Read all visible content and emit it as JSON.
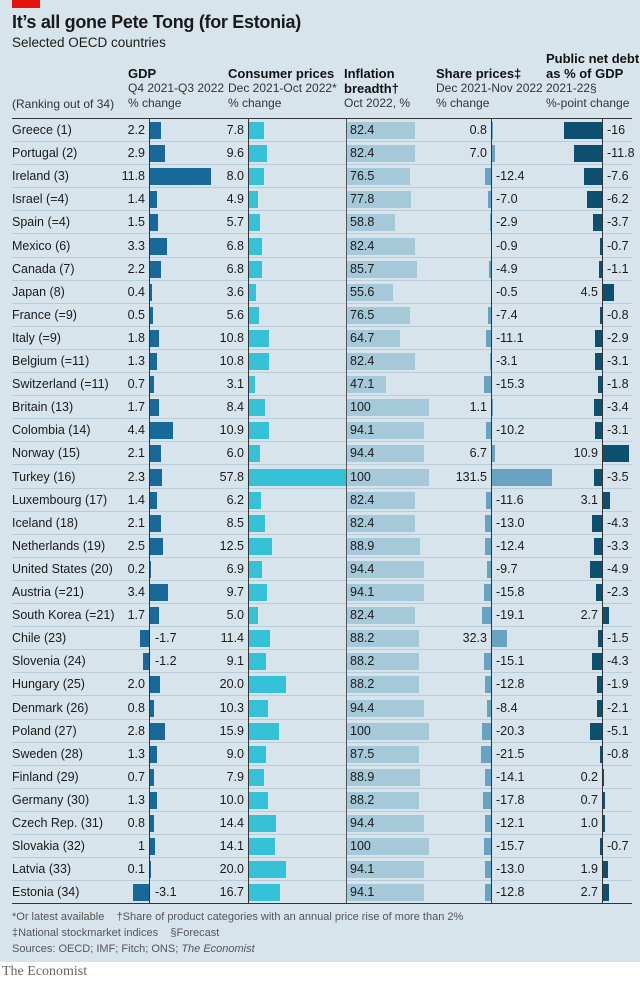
{
  "title": "It’s all gone Pete Tong (for Estonia)",
  "subtitle": "Selected OECD countries",
  "ranking_label": "(Ranking out of 34)",
  "columns": [
    {
      "title": "GDP",
      "sub1": "Q4 2021-Q3 2022",
      "sub2": "% change"
    },
    {
      "title": "Consumer prices",
      "sub1": "Dec 2021-Oct 2022*",
      "sub2": "% change"
    },
    {
      "title": "Inflation",
      "title2": "breadth†",
      "sub2": "Oct 2022, %"
    },
    {
      "title": "Share prices‡",
      "sub1": "Dec 2021-Nov 2022",
      "sub2": "% change"
    },
    {
      "title": "Public net debt",
      "title2": "as % of GDP",
      "sub1": "2021-22§",
      "sub2": "%-point change"
    }
  ],
  "colors": {
    "gdp": "#17699a",
    "cpi": "#36c2d6",
    "breadth": "#a6c9da",
    "shares": "#6aa2c2",
    "debt": "#0d4f6e",
    "background": "#d8e4ec",
    "brand_red": "#e3120b"
  },
  "chart_data": {
    "type": "table",
    "rows": [
      {
        "country": "Greece (1)",
        "gdp": "2.2",
        "cpi": "7.8",
        "breadth": "82.4",
        "shares": "0.8",
        "debt": "-16"
      },
      {
        "country": "Portugal (2)",
        "gdp": "2.9",
        "cpi": "9.6",
        "breadth": "82.4",
        "shares": "7.0",
        "debt": "-11.8"
      },
      {
        "country": "Ireland (3)",
        "gdp": "11.8",
        "cpi": "8.0",
        "breadth": "76.5",
        "shares": "-12.4",
        "debt": "-7.6"
      },
      {
        "country": "Israel (=4)",
        "gdp": "1.4",
        "cpi": "4.9",
        "breadth": "77.8",
        "shares": "-7.0",
        "debt": "-6.2"
      },
      {
        "country": "Spain (=4)",
        "gdp": "1.5",
        "cpi": "5.7",
        "breadth": "58.8",
        "shares": "-2.9",
        "debt": "-3.7"
      },
      {
        "country": "Mexico (6)",
        "gdp": "3.3",
        "cpi": "6.8",
        "breadth": "82.4",
        "shares": "-0.9",
        "debt": "-0.7"
      },
      {
        "country": "Canada (7)",
        "gdp": "2.2",
        "cpi": "6.8",
        "breadth": "85.7",
        "shares": "-4.9",
        "debt": "-1.1"
      },
      {
        "country": "Japan (8)",
        "gdp": "0.4",
        "cpi": "3.6",
        "breadth": "55.6",
        "shares": "-0.5",
        "debt": "4.5"
      },
      {
        "country": "France (=9)",
        "gdp": "0.5",
        "cpi": "5.6",
        "breadth": "76.5",
        "shares": "-7.4",
        "debt": "-0.8"
      },
      {
        "country": "Italy (=9)",
        "gdp": "1.8",
        "cpi": "10.8",
        "breadth": "64.7",
        "shares": "-11.1",
        "debt": "-2.9"
      },
      {
        "country": "Belgium (=11)",
        "gdp": "1.3",
        "cpi": "10.8",
        "breadth": "82.4",
        "shares": "-3.1",
        "debt": "-3.1"
      },
      {
        "country": "Switzerland (=11)",
        "gdp": "0.7",
        "cpi": "3.1",
        "breadth": "47.1",
        "shares": "-15.3",
        "debt": "-1.8"
      },
      {
        "country": "Britain (13)",
        "gdp": "1.7",
        "cpi": "8.4",
        "breadth": "100",
        "shares": "1.1",
        "debt": "-3.4"
      },
      {
        "country": "Colombia (14)",
        "gdp": "4.4",
        "cpi": "10.9",
        "breadth": "94.1",
        "shares": "-10.2",
        "debt": "-3.1"
      },
      {
        "country": "Norway (15)",
        "gdp": "2.1",
        "cpi": "6.0",
        "breadth": "94.4",
        "shares": "6.7",
        "debt": "10.9"
      },
      {
        "country": "Turkey (16)",
        "gdp": "2.3",
        "cpi": "57.8",
        "breadth": "100",
        "shares": "131.5",
        "debt": "-3.5"
      },
      {
        "country": "Luxembourg (17)",
        "gdp": "1.4",
        "cpi": "6.2",
        "breadth": "82.4",
        "shares": "-11.6",
        "debt": "3.1"
      },
      {
        "country": "Iceland (18)",
        "gdp": "2.1",
        "cpi": "8.5",
        "breadth": "82.4",
        "shares": "-13.0",
        "debt": "-4.3"
      },
      {
        "country": "Netherlands (19)",
        "gdp": "2.5",
        "cpi": "12.5",
        "breadth": "88.9",
        "shares": "-12.4",
        "debt": "-3.3"
      },
      {
        "country": "United States (20)",
        "gdp": "0.2",
        "cpi": "6.9",
        "breadth": "94.4",
        "shares": "-9.7",
        "debt": "-4.9"
      },
      {
        "country": "Austria (=21)",
        "gdp": "3.4",
        "cpi": "9.7",
        "breadth": "94.1",
        "shares": "-15.8",
        "debt": "-2.3"
      },
      {
        "country": "South Korea (=21)",
        "gdp": "1.7",
        "cpi": "5.0",
        "breadth": "82.4",
        "shares": "-19.1",
        "debt": "2.7"
      },
      {
        "country": "Chile (23)",
        "gdp": "-1.7",
        "cpi": "11.4",
        "breadth": "88.2",
        "shares": "32.3",
        "debt": "-1.5"
      },
      {
        "country": "Slovenia (24)",
        "gdp": "-1.2",
        "cpi": "9.1",
        "breadth": "88.2",
        "shares": "-15.1",
        "debt": "-4.3"
      },
      {
        "country": "Hungary (25)",
        "gdp": "2.0",
        "cpi": "20.0",
        "breadth": "88.2",
        "shares": "-12.8",
        "debt": "-1.9"
      },
      {
        "country": "Denmark (26)",
        "gdp": "0.8",
        "cpi": "10.3",
        "breadth": "94.4",
        "shares": "-8.4",
        "debt": "-2.1"
      },
      {
        "country": "Poland (27)",
        "gdp": "2.8",
        "cpi": "15.9",
        "breadth": "100",
        "shares": "-20.3",
        "debt": "-5.1"
      },
      {
        "country": "Sweden (28)",
        "gdp": "1.3",
        "cpi": "9.0",
        "breadth": "87.5",
        "shares": "-21.5",
        "debt": "-0.8"
      },
      {
        "country": "Finland (29)",
        "gdp": "0.7",
        "cpi": "7.9",
        "breadth": "88.9",
        "shares": "-14.1",
        "debt": "0.2"
      },
      {
        "country": "Germany (30)",
        "gdp": "1.3",
        "cpi": "10.0",
        "breadth": "88.2",
        "shares": "-17.8",
        "debt": "0.7"
      },
      {
        "country": "Czech Rep. (31)",
        "gdp": "0.8",
        "cpi": "14.4",
        "breadth": "94.4",
        "shares": "-12.1",
        "debt": "1.0"
      },
      {
        "country": "Slovakia (32)",
        "gdp": "1",
        "cpi": "14.1",
        "breadth": "100",
        "shares": "-15.7",
        "debt": "-0.7"
      },
      {
        "country": "Latvia (33)",
        "gdp": "0.1",
        "cpi": "20.0",
        "breadth": "94.1",
        "shares": "-13.0",
        "debt": "1.9"
      },
      {
        "country": "Estonia (34)",
        "gdp": "-3.1",
        "cpi": "16.7",
        "breadth": "94.1",
        "shares": "-12.8",
        "debt": "2.7"
      }
    ]
  },
  "footnotes": {
    "line1a": "*Or latest available",
    "line1b": "†Share of product categories with an annual price rise of more than 2%",
    "line2a": "‡National stockmarket indices",
    "line2b": "§Forecast",
    "sources": "Sources: OECD; IMF; Fitch; ONS; ",
    "sources_italic": "The Economist"
  },
  "brand": "The Economist"
}
